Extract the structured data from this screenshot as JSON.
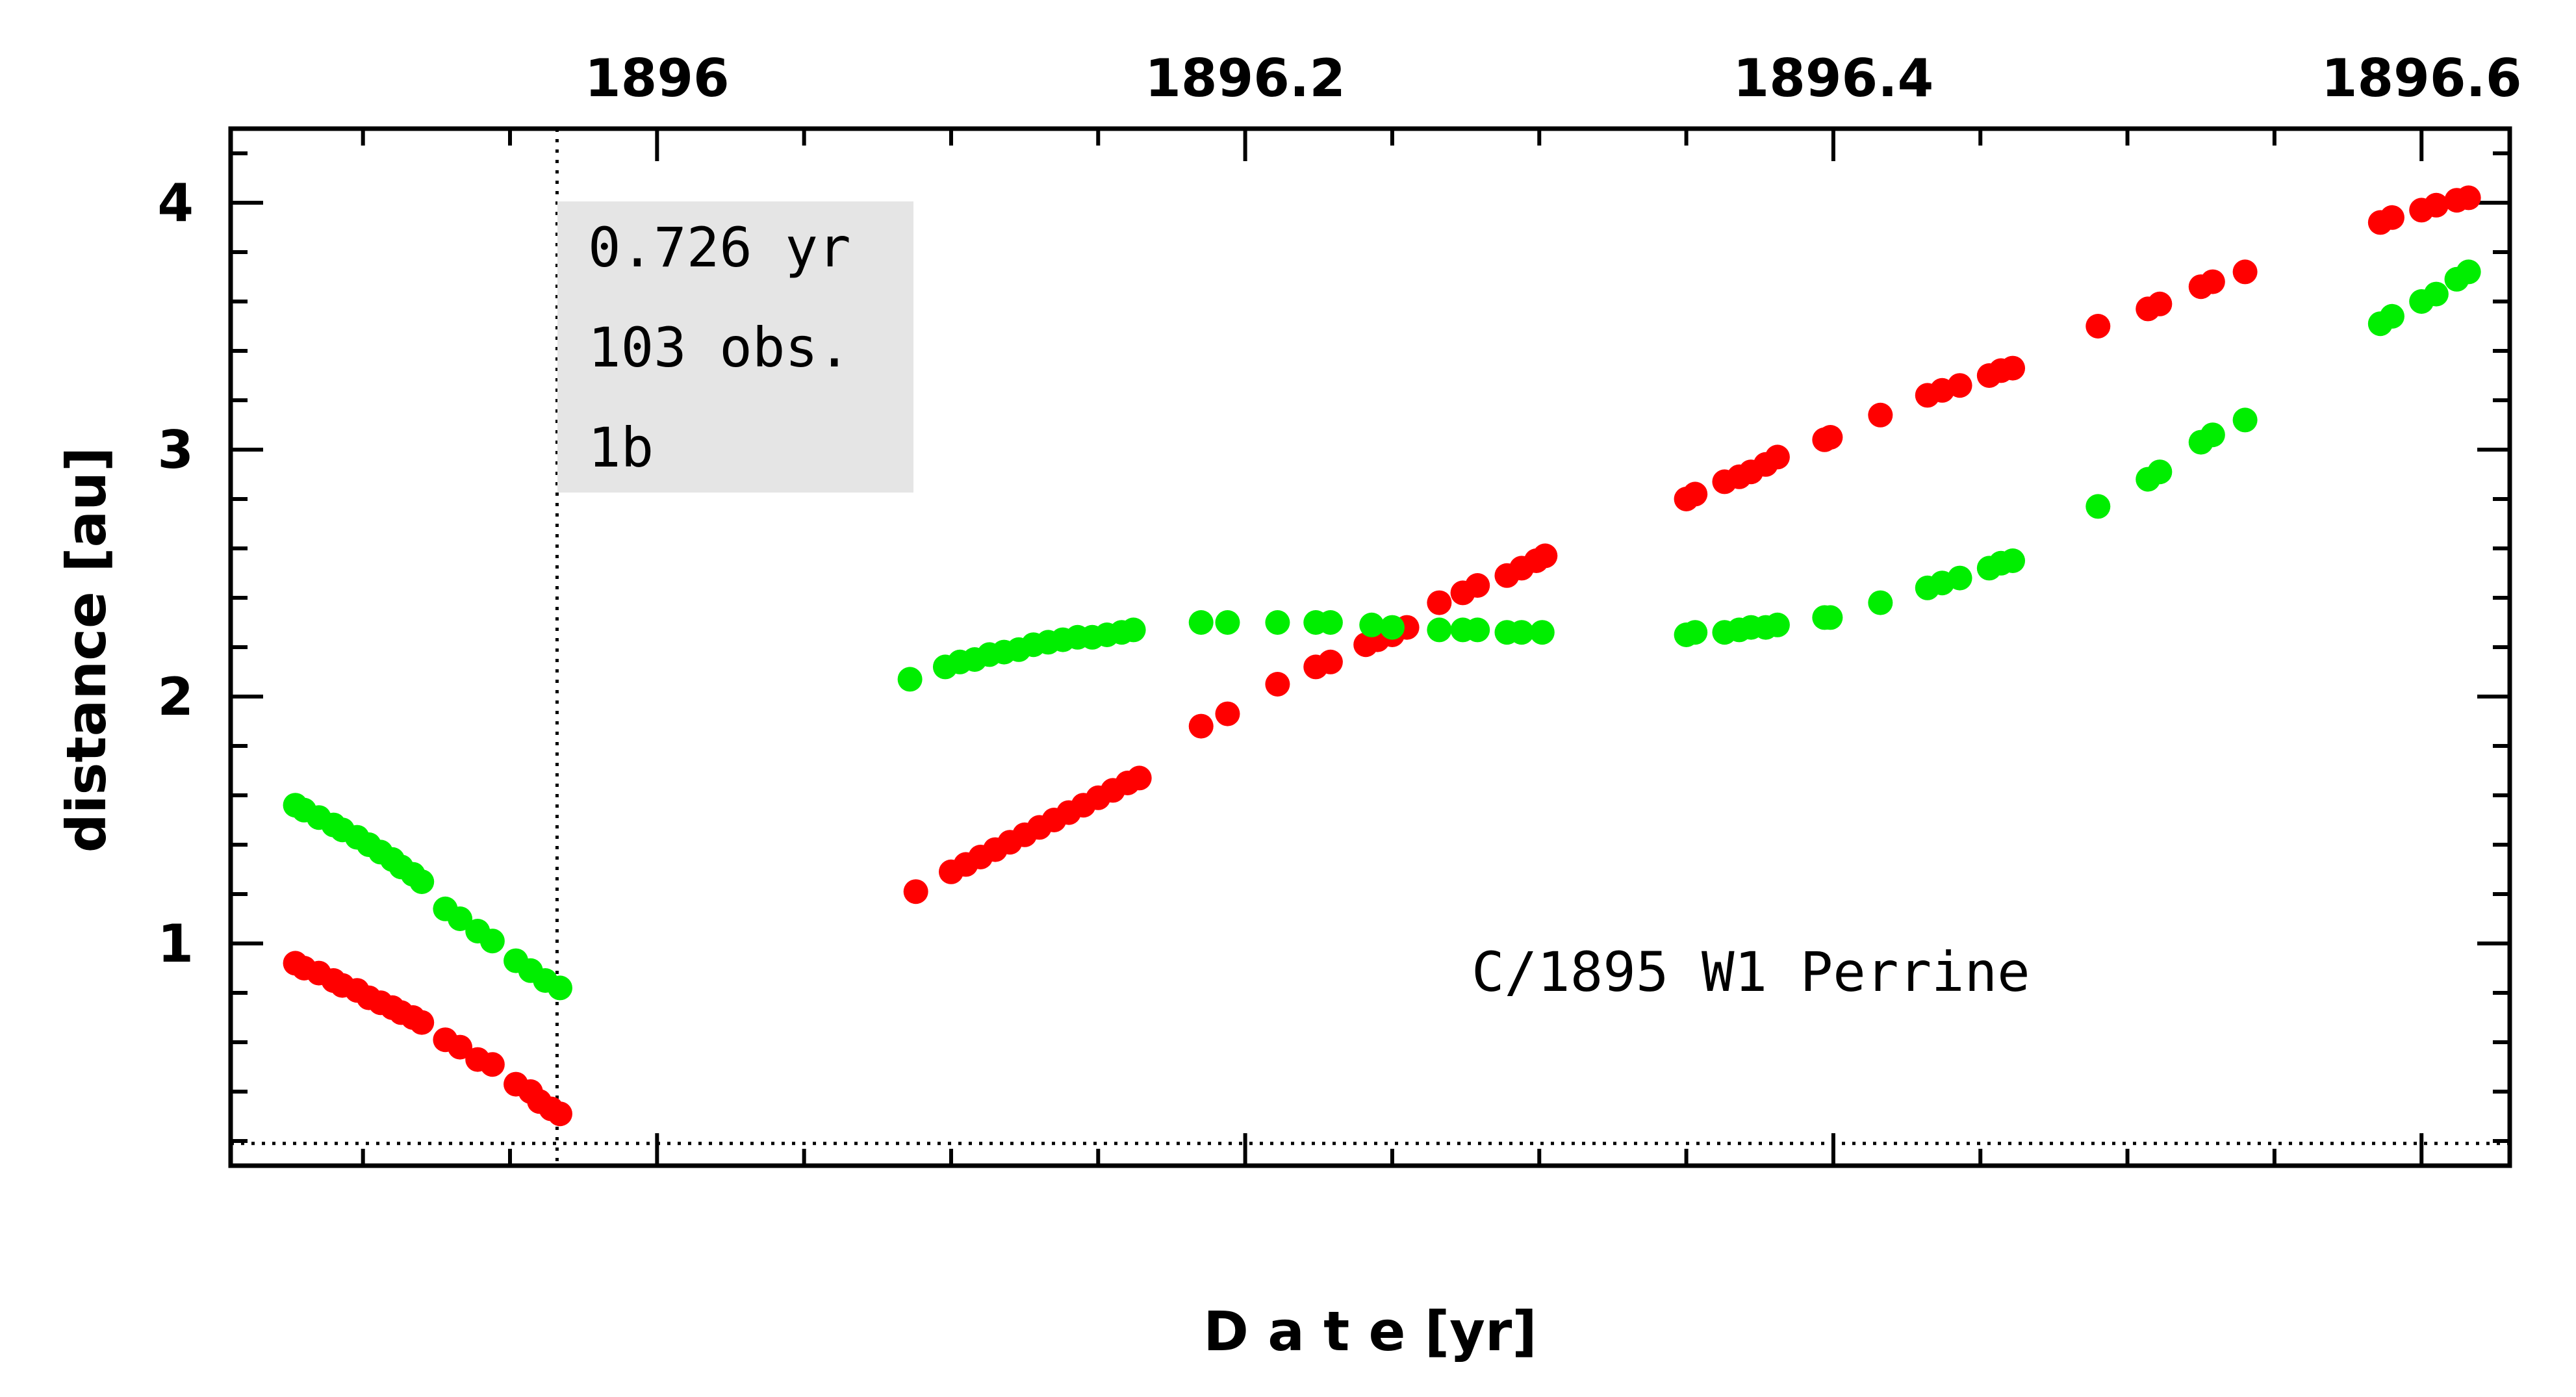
{
  "chart_data": {
    "type": "scatter",
    "title": "",
    "xlabel": "D a t e [yr]",
    "ylabel": "distance [au]",
    "xlim": [
      1895.855,
      1896.63
    ],
    "ylim": [
      0.1,
      4.3
    ],
    "x_ticks": [
      1896,
      1896.2,
      1896.4,
      1896.6
    ],
    "x_tick_labels": [
      "1896",
      "1896.2",
      "1896.4",
      "1896.6"
    ],
    "y_ticks": [
      1,
      2,
      3,
      4
    ],
    "y_tick_labels": [
      "1",
      "2",
      "3",
      "4"
    ],
    "reference_lines": {
      "perihelion_date": 1895.966,
      "perihelion_distance": 0.19
    },
    "annotation_box": {
      "lines": [
        "0.726 yr",
        "103 obs.",
        "1b"
      ]
    },
    "object_label": "C/1895 W1 Perrine",
    "grid": false,
    "series": [
      {
        "color": "#ff0000",
        "points": [
          [
            1895.877,
            0.92
          ],
          [
            1895.88,
            0.9
          ],
          [
            1895.885,
            0.88
          ],
          [
            1895.89,
            0.85
          ],
          [
            1895.893,
            0.83
          ],
          [
            1895.898,
            0.81
          ],
          [
            1895.902,
            0.78
          ],
          [
            1895.906,
            0.76
          ],
          [
            1895.91,
            0.74
          ],
          [
            1895.913,
            0.72
          ],
          [
            1895.917,
            0.7
          ],
          [
            1895.92,
            0.68
          ],
          [
            1895.928,
            0.61
          ],
          [
            1895.933,
            0.58
          ],
          [
            1895.939,
            0.53
          ],
          [
            1895.944,
            0.51
          ],
          [
            1895.952,
            0.43
          ],
          [
            1895.957,
            0.4
          ],
          [
            1895.96,
            0.36
          ],
          [
            1895.964,
            0.33
          ],
          [
            1895.967,
            0.31
          ],
          [
            1896.088,
            1.21
          ],
          [
            1896.1,
            1.29
          ],
          [
            1896.105,
            1.32
          ],
          [
            1896.11,
            1.35
          ],
          [
            1896.115,
            1.38
          ],
          [
            1896.12,
            1.41
          ],
          [
            1896.125,
            1.44
          ],
          [
            1896.13,
            1.47
          ],
          [
            1896.135,
            1.5
          ],
          [
            1896.14,
            1.53
          ],
          [
            1896.145,
            1.56
          ],
          [
            1896.15,
            1.59
          ],
          [
            1896.155,
            1.62
          ],
          [
            1896.16,
            1.65
          ],
          [
            1896.164,
            1.67
          ],
          [
            1896.185,
            1.88
          ],
          [
            1896.194,
            1.93
          ],
          [
            1896.211,
            2.05
          ],
          [
            1896.224,
            2.12
          ],
          [
            1896.229,
            2.14
          ],
          [
            1896.241,
            2.21
          ],
          [
            1896.245,
            2.23
          ],
          [
            1896.25,
            2.25
          ],
          [
            1896.255,
            2.28
          ],
          [
            1896.266,
            2.38
          ],
          [
            1896.274,
            2.42
          ],
          [
            1896.279,
            2.45
          ],
          [
            1896.289,
            2.49
          ],
          [
            1896.294,
            2.52
          ],
          [
            1896.299,
            2.55
          ],
          [
            1896.302,
            2.57
          ],
          [
            1896.35,
            2.8
          ],
          [
            1896.353,
            2.82
          ],
          [
            1896.363,
            2.87
          ],
          [
            1896.368,
            2.89
          ],
          [
            1896.372,
            2.91
          ],
          [
            1896.377,
            2.94
          ],
          [
            1896.381,
            2.97
          ],
          [
            1896.397,
            3.04
          ],
          [
            1896.399,
            3.05
          ],
          [
            1896.416,
            3.14
          ],
          [
            1896.432,
            3.22
          ],
          [
            1896.437,
            3.24
          ],
          [
            1896.443,
            3.26
          ],
          [
            1896.453,
            3.3
          ],
          [
            1896.457,
            3.32
          ],
          [
            1896.461,
            3.33
          ],
          [
            1896.49,
            3.5
          ],
          [
            1896.507,
            3.57
          ],
          [
            1896.511,
            3.59
          ],
          [
            1896.525,
            3.66
          ],
          [
            1896.529,
            3.68
          ],
          [
            1896.54,
            3.72
          ],
          [
            1896.586,
            3.92
          ],
          [
            1896.59,
            3.94
          ],
          [
            1896.6,
            3.97
          ],
          [
            1896.605,
            3.99
          ],
          [
            1896.612,
            4.01
          ],
          [
            1896.616,
            4.02
          ]
        ]
      },
      {
        "color": "#00ee00",
        "points": [
          [
            1895.877,
            1.56
          ],
          [
            1895.88,
            1.54
          ],
          [
            1895.885,
            1.51
          ],
          [
            1895.89,
            1.48
          ],
          [
            1895.893,
            1.46
          ],
          [
            1895.898,
            1.43
          ],
          [
            1895.902,
            1.4
          ],
          [
            1895.906,
            1.37
          ],
          [
            1895.91,
            1.34
          ],
          [
            1895.913,
            1.31
          ],
          [
            1895.917,
            1.28
          ],
          [
            1895.92,
            1.25
          ],
          [
            1895.928,
            1.14
          ],
          [
            1895.933,
            1.1
          ],
          [
            1895.939,
            1.05
          ],
          [
            1895.944,
            1.01
          ],
          [
            1895.952,
            0.93
          ],
          [
            1895.957,
            0.89
          ],
          [
            1895.962,
            0.85
          ],
          [
            1895.967,
            0.82
          ],
          [
            1896.086,
            2.07
          ],
          [
            1896.098,
            2.12
          ],
          [
            1896.103,
            2.14
          ],
          [
            1896.108,
            2.15
          ],
          [
            1896.113,
            2.17
          ],
          [
            1896.118,
            2.18
          ],
          [
            1896.123,
            2.19
          ],
          [
            1896.128,
            2.21
          ],
          [
            1896.133,
            2.22
          ],
          [
            1896.138,
            2.23
          ],
          [
            1896.143,
            2.24
          ],
          [
            1896.148,
            2.24
          ],
          [
            1896.153,
            2.25
          ],
          [
            1896.158,
            2.26
          ],
          [
            1896.162,
            2.27
          ],
          [
            1896.185,
            2.3
          ],
          [
            1896.194,
            2.3
          ],
          [
            1896.211,
            2.3
          ],
          [
            1896.224,
            2.3
          ],
          [
            1896.229,
            2.3
          ],
          [
            1896.243,
            2.29
          ],
          [
            1896.25,
            2.28
          ],
          [
            1896.266,
            2.27
          ],
          [
            1896.274,
            2.27
          ],
          [
            1896.279,
            2.27
          ],
          [
            1896.289,
            2.26
          ],
          [
            1896.294,
            2.26
          ],
          [
            1896.301,
            2.26
          ],
          [
            1896.35,
            2.25
          ],
          [
            1896.353,
            2.26
          ],
          [
            1896.363,
            2.26
          ],
          [
            1896.368,
            2.27
          ],
          [
            1896.372,
            2.28
          ],
          [
            1896.377,
            2.28
          ],
          [
            1896.381,
            2.29
          ],
          [
            1896.397,
            2.32
          ],
          [
            1896.399,
            2.32
          ],
          [
            1896.416,
            2.38
          ],
          [
            1896.432,
            2.44
          ],
          [
            1896.437,
            2.46
          ],
          [
            1896.443,
            2.48
          ],
          [
            1896.453,
            2.52
          ],
          [
            1896.457,
            2.54
          ],
          [
            1896.461,
            2.55
          ],
          [
            1896.49,
            2.77
          ],
          [
            1896.507,
            2.88
          ],
          [
            1896.511,
            2.91
          ],
          [
            1896.525,
            3.03
          ],
          [
            1896.529,
            3.06
          ],
          [
            1896.54,
            3.12
          ],
          [
            1896.586,
            3.51
          ],
          [
            1896.59,
            3.54
          ],
          [
            1896.6,
            3.6
          ],
          [
            1896.605,
            3.63
          ],
          [
            1896.612,
            3.69
          ],
          [
            1896.616,
            3.72
          ]
        ]
      }
    ]
  }
}
